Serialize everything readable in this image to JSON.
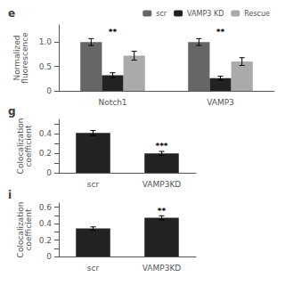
{
  "chart_data": [
    {
      "type": "bar",
      "title": "e",
      "ylabel": "Normalized\nfluorescence",
      "categories": [
        "Notch1",
        "VAMP3"
      ],
      "series": [
        {
          "name": "scr",
          "color": "#666666",
          "values": [
            1.0,
            1.0
          ],
          "errors": [
            0.07,
            0.07
          ]
        },
        {
          "name": "VAMP3 KD",
          "color": "#222222",
          "values": [
            0.32,
            0.26
          ],
          "errors": [
            0.05,
            0.04
          ]
        },
        {
          "name": "Rescue",
          "color": "#aaaaaa",
          "values": [
            0.72,
            0.6
          ],
          "errors": [
            0.09,
            0.08
          ]
        }
      ],
      "ylim": [
        0,
        1.35
      ],
      "yticks": [
        0,
        0.5,
        {
          "value": 1.0,
          "label": "1.0"
        }
      ],
      "legend": "upper right",
      "annotations": [
        {
          "text": "**",
          "x": "Notch1",
          "y": 1.12
        },
        {
          "text": "**",
          "x": "VAMP3",
          "y": 1.12
        }
      ]
    },
    {
      "type": "bar",
      "title": "g",
      "ylabel": "Colocalization\ncoefficient",
      "categories": [
        "scr",
        "VAMP3KD"
      ],
      "values": [
        0.41,
        0.2
      ],
      "errors": [
        0.025,
        0.02
      ],
      "color": "#222222",
      "ylim": [
        0,
        0.55
      ],
      "yticks": [
        0,
        {
          "value": 0.1,
          "label": ""
        },
        0.2,
        {
          "value": 0.3,
          "label": ""
        },
        0.4,
        {
          "value": 0.5,
          "label": ""
        }
      ],
      "annotations": [
        {
          "text": "***",
          "x": "VAMP3KD",
          "y": 0.23
        }
      ]
    },
    {
      "type": "bar",
      "title": "i",
      "ylabel": "Colocalization\ncoefficient",
      "categories": [
        "scr",
        "VAMP3KD"
      ],
      "values": [
        0.34,
        0.47
      ],
      "errors": [
        0.02,
        0.025
      ],
      "color": "#222222",
      "ylim": [
        0,
        0.65
      ],
      "yticks": [
        0,
        {
          "value": 0.1,
          "label": ""
        },
        0.2,
        {
          "value": 0.3,
          "label": ""
        },
        0.4,
        {
          "value": 0.5,
          "label": ""
        },
        0.6
      ],
      "annotations": [
        {
          "text": "**",
          "x": "VAMP3KD",
          "y": 0.505
        }
      ]
    }
  ]
}
